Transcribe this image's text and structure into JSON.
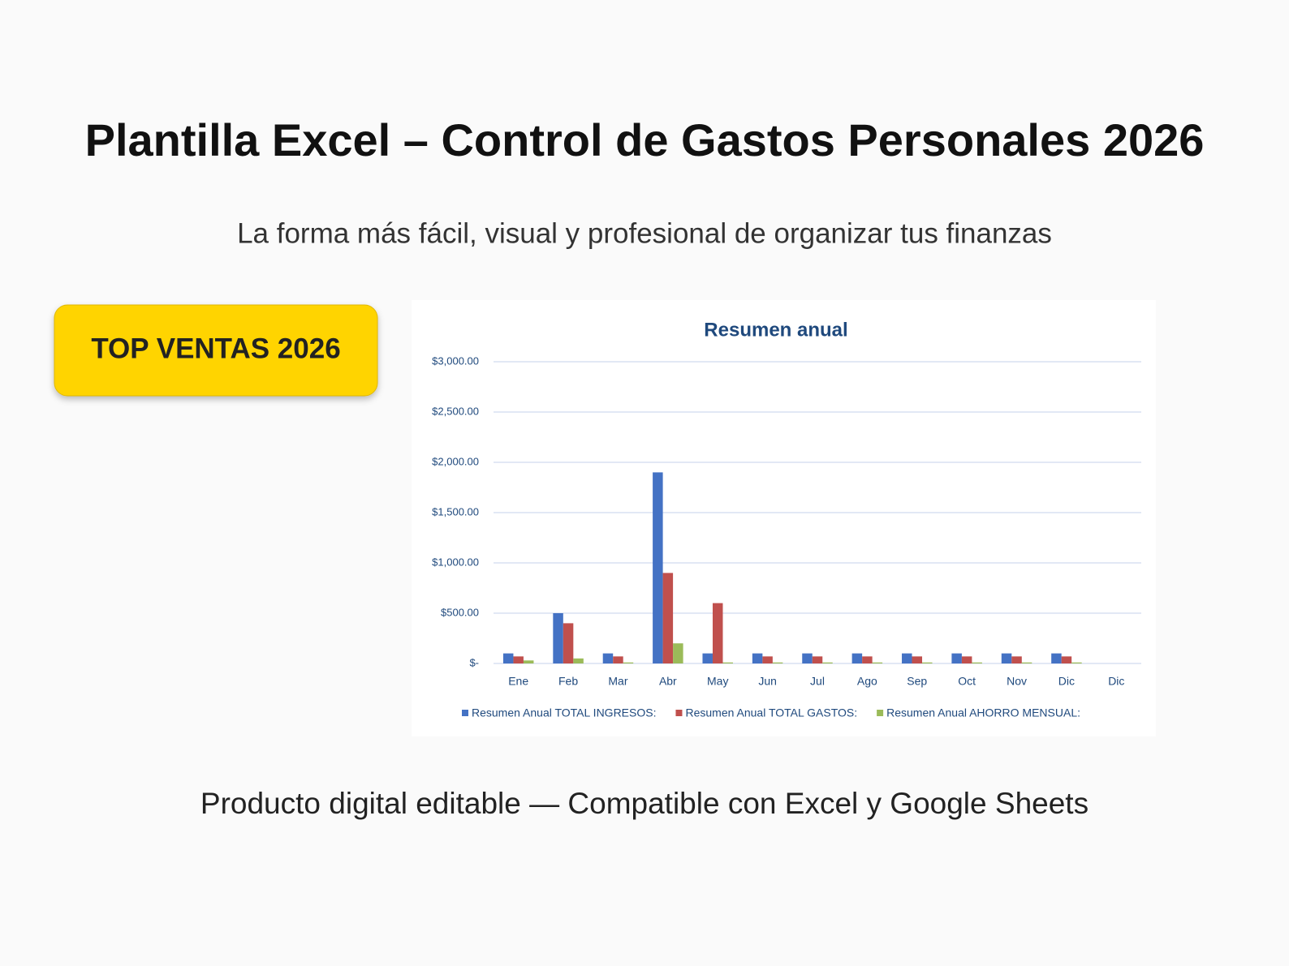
{
  "header": {
    "title": "Plantilla Excel – Control de Gastos Personales 2026",
    "subtitle": "La forma más fácil, visual y profesional de organizar tus finanzas"
  },
  "badge": {
    "label": "TOP VENTAS 2026"
  },
  "chart_data": {
    "type": "bar",
    "title": "Resumen anual",
    "categories": [
      "Ene",
      "Feb",
      "Mar",
      "Abr",
      "May",
      "Jun",
      "Jul",
      "Ago",
      "Sep",
      "Oct",
      "Nov",
      "Dic",
      "Dic"
    ],
    "series": [
      {
        "name": "Resumen Anual TOTAL INGRESOS:",
        "color": "#4472c4",
        "values": [
          100,
          500,
          100,
          1900,
          100,
          100,
          100,
          100,
          100,
          100,
          100,
          100,
          null
        ]
      },
      {
        "name": "Resumen Anual TOTAL GASTOS:",
        "color": "#c0504d",
        "values": [
          70,
          400,
          70,
          900,
          600,
          70,
          70,
          70,
          70,
          70,
          70,
          70,
          null
        ]
      },
      {
        "name": "Resumen Anual AHORRO MENSUAL:",
        "color": "#9bbb59",
        "values": [
          30,
          50,
          10,
          200,
          10,
          10,
          10,
          10,
          10,
          10,
          10,
          10,
          null
        ]
      }
    ],
    "ylim": [
      0,
      3000
    ],
    "yticks": [
      {
        "value": 0,
        "label": "$-"
      },
      {
        "value": 500,
        "label": "$500.00"
      },
      {
        "value": 1000,
        "label": "$1,000.00"
      },
      {
        "value": 1500,
        "label": "$1,500.00"
      },
      {
        "value": 2000,
        "label": "$2,000.00"
      },
      {
        "value": 2500,
        "label": "$2,500.00"
      },
      {
        "value": 3000,
        "label": "$3,000.00"
      }
    ],
    "grid": true,
    "legend": "bottom"
  },
  "footer": {
    "text": "Producto digital editable — Compatible con Excel y Google Sheets"
  }
}
